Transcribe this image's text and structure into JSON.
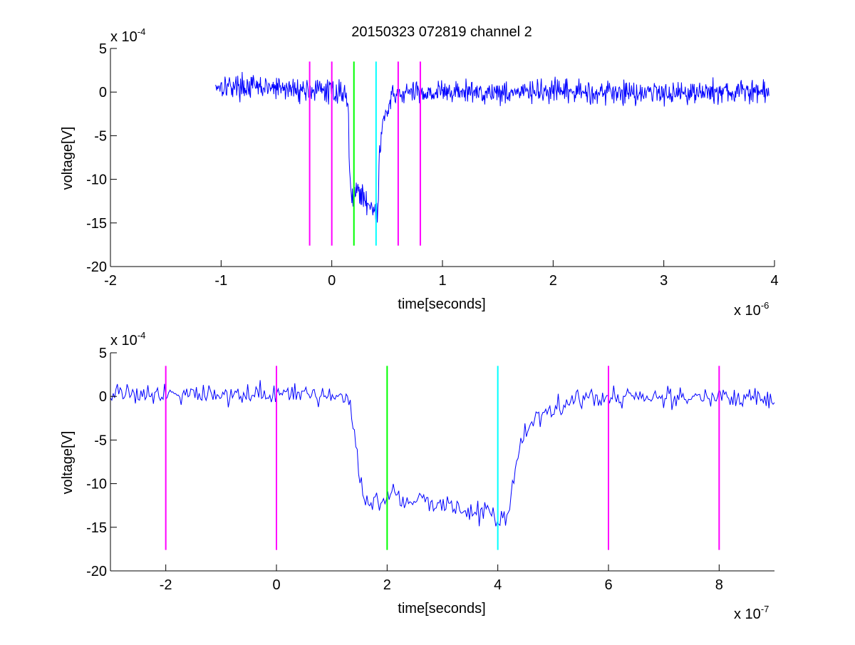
{
  "figure": {
    "title": "20150323 072819 channel 2"
  },
  "chart_data": [
    {
      "type": "line",
      "title": "20150323 072819 channel 2",
      "xlabel": "time[seconds]",
      "ylabel": "voltage[V]",
      "x_exponent_label": "x 10",
      "x_exponent": "-6",
      "y_exponent_label": "x 10",
      "y_exponent": "-4",
      "xlim": [
        -2,
        4
      ],
      "ylim": [
        -20,
        5
      ],
      "xticks": [
        -2,
        -1,
        0,
        1,
        2,
        3,
        4
      ],
      "yticks": [
        5,
        0,
        -5,
        -10,
        -15,
        -20
      ],
      "grid": false,
      "signal_color": "#0000ff",
      "series": [
        {
          "x_start": -1.05,
          "x_end": 3.95,
          "keypoints": [
            [
              -1.05,
              0.8
            ],
            [
              0.12,
              0.0
            ],
            [
              0.15,
              -2.0
            ],
            [
              0.16,
              -9.0
            ],
            [
              0.17,
              -12.0
            ],
            [
              0.22,
              -11.0
            ],
            [
              0.3,
              -12.5
            ],
            [
              0.38,
              -13.0
            ],
            [
              0.4,
              -14.5
            ],
            [
              0.42,
              -13.5
            ],
            [
              0.43,
              -7.0
            ],
            [
              0.46,
              -3.5
            ],
            [
              0.55,
              -0.6
            ],
            [
              0.62,
              -0.2
            ],
            [
              0.8,
              0.0
            ],
            [
              3.95,
              0.0
            ]
          ]
        }
      ],
      "markers": [
        {
          "x": -0.2,
          "color": "#ff00ff"
        },
        {
          "x": 0.0,
          "color": "#ff00ff"
        },
        {
          "x": 0.2,
          "color": "#00ff00"
        },
        {
          "x": 0.4,
          "color": "#00ffff"
        },
        {
          "x": 0.6,
          "color": "#ff00ff"
        },
        {
          "x": 0.8,
          "color": "#ff00ff"
        }
      ],
      "marker_range": [
        -17.6,
        3.5
      ]
    },
    {
      "type": "line",
      "xlabel": "time[seconds]",
      "ylabel": "voltage[V]",
      "x_exponent_label": "x 10",
      "x_exponent": "-7",
      "y_exponent_label": "x 10",
      "y_exponent": "-4",
      "xlim": [
        -3,
        9
      ],
      "ylim": [
        -20,
        5
      ],
      "xticks": [
        -2,
        0,
        2,
        4,
        6,
        8
      ],
      "yticks": [
        5,
        0,
        -5,
        -10,
        -15,
        -20
      ],
      "grid": false,
      "signal_color": "#0000ff",
      "series": [
        {
          "x_start": -3,
          "x_end": 9,
          "keypoints": [
            [
              -3.0,
              0.5
            ],
            [
              1.3,
              0.0
            ],
            [
              1.4,
              -3.0
            ],
            [
              1.5,
              -9.0
            ],
            [
              1.6,
              -12.5
            ],
            [
              1.8,
              -11.8
            ],
            [
              2.2,
              -11.5
            ],
            [
              3.0,
              -12.5
            ],
            [
              3.9,
              -13.5
            ],
            [
              4.0,
              -14.5
            ],
            [
              4.2,
              -13.5
            ],
            [
              4.3,
              -9.0
            ],
            [
              4.4,
              -5.0
            ],
            [
              4.7,
              -2.5
            ],
            [
              5.0,
              -1.2
            ],
            [
              5.5,
              -0.3
            ],
            [
              6.0,
              0.0
            ],
            [
              9.0,
              -0.3
            ]
          ]
        }
      ],
      "markers": [
        {
          "x": -2,
          "color": "#ff00ff"
        },
        {
          "x": 0,
          "color": "#ff00ff"
        },
        {
          "x": 2,
          "color": "#00ff00"
        },
        {
          "x": 4,
          "color": "#00ffff"
        },
        {
          "x": 6,
          "color": "#ff00ff"
        },
        {
          "x": 8,
          "color": "#ff00ff"
        }
      ],
      "marker_range": [
        -17.6,
        3.5
      ]
    }
  ]
}
